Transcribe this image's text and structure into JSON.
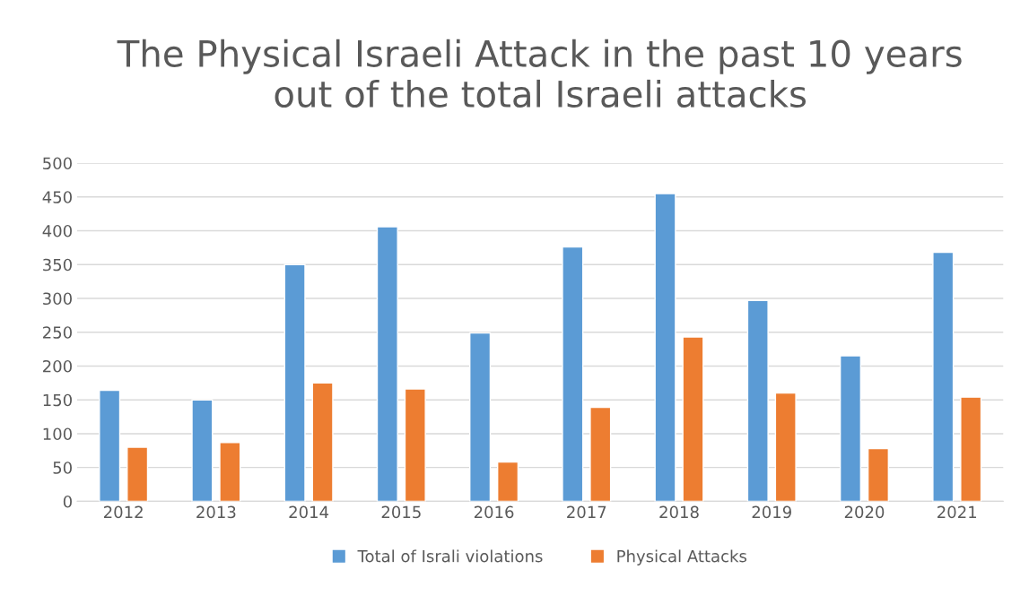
{
  "chart_data": {
    "type": "bar",
    "title": "The Physical Israeli Attack in the past 10 years\nout of the total Israeli attacks",
    "categories": [
      "2012",
      "2013",
      "2014",
      "2015",
      "2016",
      "2017",
      "2018",
      "2019",
      "2020",
      "2021"
    ],
    "series": [
      {
        "name": "Total of Israli violations",
        "color": "#5b9bd5",
        "values": [
          164,
          150,
          350,
          406,
          249,
          376,
          455,
          297,
          215,
          368
        ]
      },
      {
        "name": "Physical Attacks",
        "color": "#ed7d31",
        "values": [
          80,
          87,
          175,
          166,
          58,
          139,
          243,
          160,
          78,
          154
        ]
      }
    ],
    "ylim": [
      0,
      500
    ],
    "yticks": [
      0,
      50,
      100,
      150,
      200,
      250,
      300,
      350,
      400,
      450,
      500
    ],
    "grid": "y",
    "legend": "bottom"
  }
}
